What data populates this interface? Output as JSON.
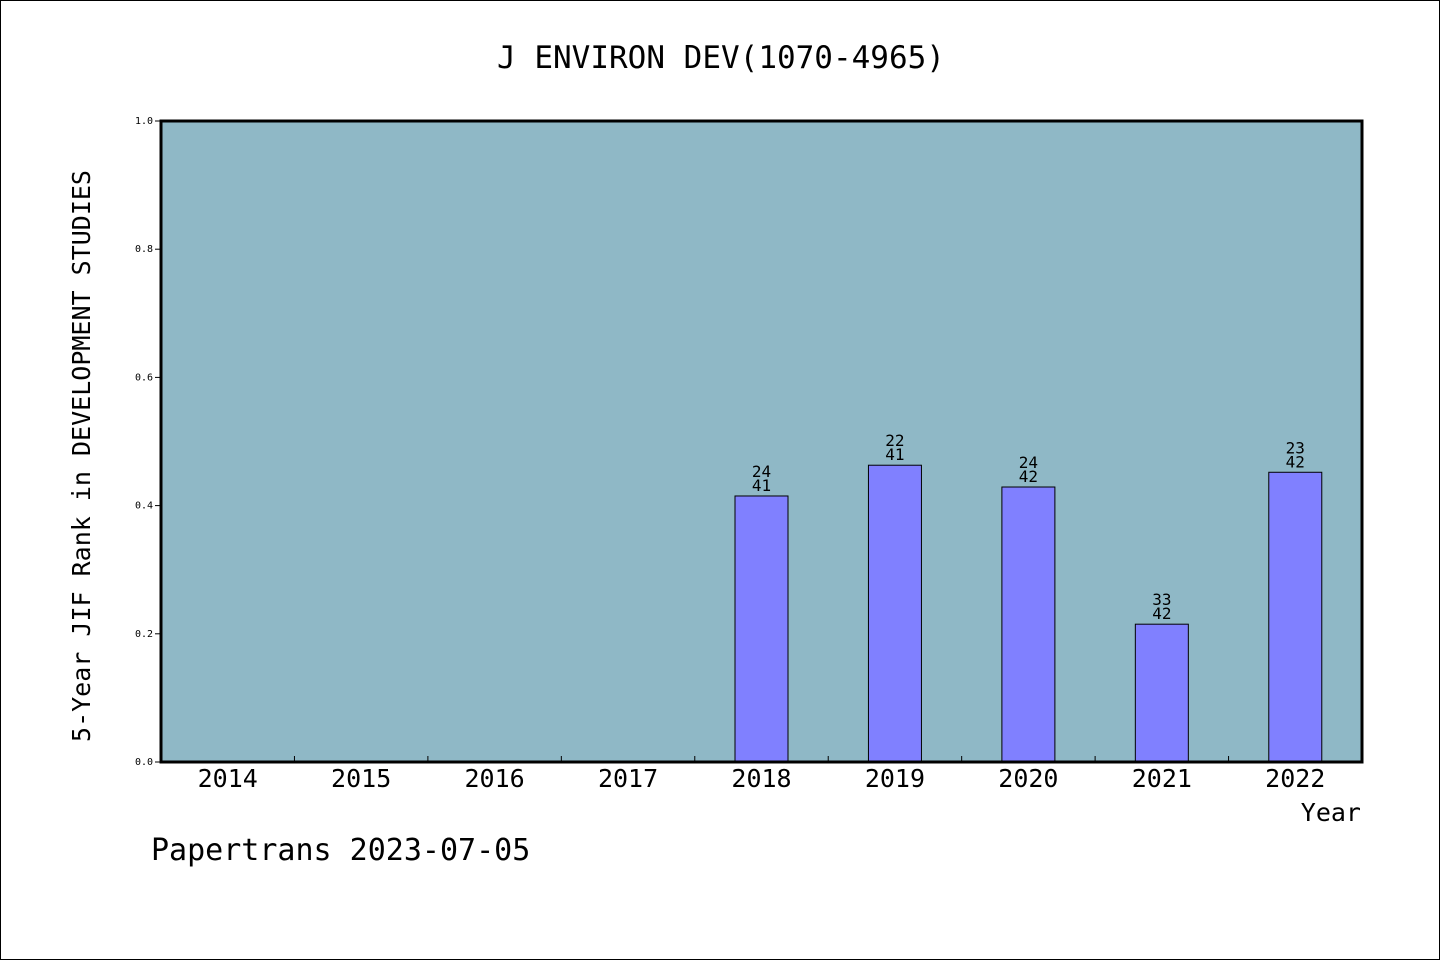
{
  "chart_data": {
    "type": "bar",
    "title": "J ENVIRON DEV(1070-4965)",
    "xlabel": "Year",
    "ylabel": "5-Year JIF Rank in DEVELOPMENT STUDIES",
    "categories": [
      "2014",
      "2015",
      "2016",
      "2017",
      "2018",
      "2019",
      "2020",
      "2021",
      "2022"
    ],
    "values": [
      null,
      null,
      null,
      null,
      0.415,
      0.463,
      0.429,
      0.215,
      0.452
    ],
    "rank_labels": [
      null,
      null,
      null,
      null,
      {
        "rank": "24",
        "total": "41"
      },
      {
        "rank": "22",
        "total": "41"
      },
      {
        "rank": "24",
        "total": "42"
      },
      {
        "rank": "33",
        "total": "42"
      },
      {
        "rank": "23",
        "total": "42"
      }
    ],
    "ylim": [
      0,
      1.0
    ],
    "yticks": [
      "0.0",
      "0.2",
      "0.4",
      "0.6",
      "0.8",
      "1.0"
    ],
    "grid": false,
    "legend": "none",
    "colors": {
      "plot_background": "#8fb8c6",
      "bar_fill": "#8080ff",
      "bar_stroke": "#000000"
    }
  },
  "footer": {
    "text": "Papertrans 2023-07-05"
  }
}
